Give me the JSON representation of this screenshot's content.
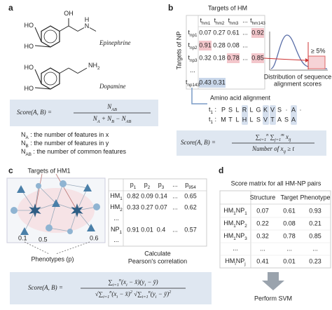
{
  "panel_a": {
    "label": "a",
    "molecules": [
      {
        "name": "Epinephrine",
        "atoms": [
          [
            "OH"
          ],
          [
            "HO"
          ],
          [
            "HO"
          ],
          [
            "N"
          ],
          [
            "H"
          ]
        ]
      },
      {
        "name": "Dopamine",
        "atoms": [
          [
            "HO"
          ],
          [
            "HO"
          ],
          [
            "NH",
            {
              "sub": "2"
            }
          ]
        ]
      }
    ],
    "formula": {
      "lhs": "Score(A, B) =",
      "num": [
        "N",
        {
          "sub": "AB"
        }
      ],
      "den": [
        "N",
        {
          "sub": "A"
        },
        " + N",
        {
          "sub": "B"
        },
        " − N",
        {
          "sub": "AB"
        }
      ]
    },
    "definitions": [
      [
        "N",
        {
          "sub": "A"
        },
        " : the number of features in x"
      ],
      [
        "N",
        {
          "sub": "B"
        },
        " : the number of features in y"
      ],
      [
        "N",
        {
          "sub": "AB"
        },
        " : the number of common features"
      ]
    ]
  },
  "panel_b": {
    "label": "b",
    "col_title": "Targets of HM",
    "row_title": "Targets of NP",
    "columns": [
      [
        "t",
        {
          "sub": "hm1"
        }
      ],
      [
        "t",
        {
          "sub": "hm2"
        }
      ],
      [
        "t",
        {
          "sub": "hm3"
        }
      ],
      [
        "..."
      ],
      [
        "t",
        {
          "sub": "hm143"
        }
      ]
    ],
    "rows": [
      {
        "header": [
          "t",
          {
            "sub": "np1"
          }
        ],
        "cells": [
          0.07,
          0.27,
          0.61,
          "...",
          0.92
        ]
      },
      {
        "header": [
          "t",
          {
            "sub": "np2"
          }
        ],
        "cells": [
          0.91,
          0.28,
          0.08,
          "...",
          null
        ]
      },
      {
        "header": [
          "t",
          {
            "sub": "np3"
          }
        ],
        "cells": [
          0.32,
          0.18,
          0.78,
          "...",
          0.85
        ]
      },
      {
        "header": [
          "..."
        ],
        "cells": [
          null,
          null,
          null,
          null,
          null
        ]
      },
      {
        "header": [
          "t",
          {
            "sub": "np143"
          }
        ],
        "cells": [
          0.43,
          0.31,
          null,
          null,
          null
        ]
      }
    ],
    "threshold": "≥ 5%",
    "distribution_caption": [
      "Distribution of sequence",
      "alignment scores"
    ],
    "alignment_title": "Amino acid alignment",
    "alignment": [
      {
        "label": [
          "t",
          {
            "sub": "1"
          },
          " :"
        ],
        "residues": [
          "P",
          "S",
          "L",
          "R",
          "L",
          "G",
          "K",
          "V",
          "S",
          "·",
          "A",
          "·"
        ]
      },
      {
        "label": [
          "t",
          {
            "sub": "1"
          },
          " :"
        ],
        "residues": [
          "M",
          "T",
          "L",
          "H",
          "L",
          "S",
          "V",
          "T",
          "A",
          "S",
          "A"
        ]
      }
    ],
    "highlight_columns": [
      3,
      6,
      7,
      10
    ],
    "formula": {
      "lhs": "Score(A, B) =",
      "num": [
        "∑",
        {
          "sub": "i=1"
        },
        {
          "sup": "n"
        },
        " ∑",
        {
          "sub": "j=1"
        },
        {
          "sup": "m"
        },
        " x",
        {
          "sub": "ij"
        }
      ],
      "den": [
        "Number of x",
        {
          "sub": "ij"
        },
        " ≥ t"
      ]
    }
  },
  "panel_c": {
    "label": "c",
    "title": "Targets of HM1",
    "network_labels": [
      0.1,
      0.5,
      0.6
    ],
    "caption": "Phenotypes (p)",
    "columns": [
      [
        "p",
        {
          "sub": "1"
        }
      ],
      [
        "p",
        {
          "sub": "2"
        }
      ],
      [
        "p",
        {
          "sub": "3"
        }
      ],
      [
        "..."
      ],
      [
        "p",
        {
          "sub": "954"
        }
      ]
    ],
    "rows": [
      {
        "header": [
          "HM",
          {
            "sub": "1"
          }
        ],
        "cells": [
          0.82,
          0.09,
          0.14,
          "...",
          0.65
        ]
      },
      {
        "header": [
          "HM",
          {
            "sub": "2"
          }
        ],
        "cells": [
          0.33,
          0.27,
          0.07,
          "...",
          0.62
        ]
      },
      {
        "header": [
          "..."
        ],
        "cells": []
      },
      {
        "header": [
          "NP",
          {
            "sub": "1"
          }
        ],
        "cells": [
          0.91,
          0.01,
          0.4,
          "...",
          0.57
        ]
      },
      {
        "header": [
          "..."
        ],
        "cells": []
      }
    ],
    "caption2": [
      "Calculate",
      "Pearson's correlation"
    ],
    "formula": {
      "lhs": "Score(A, B) =",
      "num": [
        "∑",
        {
          "sub": "i=1"
        },
        {
          "sup": "n"
        },
        "(x",
        {
          "sub": "i"
        },
        " − x̄)(y",
        {
          "sub": "i"
        },
        " − ȳ)"
      ],
      "den": [
        "√∑",
        {
          "sub": "i=1"
        },
        {
          "sup": "n"
        },
        "(x",
        {
          "sub": "i"
        },
        " − x̄)",
        {
          "sup": "2"
        },
        " √∑",
        {
          "sub": "i=1"
        },
        {
          "sup": "n"
        },
        "(y",
        {
          "sub": "i"
        },
        " − ȳ)",
        {
          "sup": "2"
        }
      ]
    }
  },
  "panel_d": {
    "label": "d",
    "title": "Score matrix for all HM-NP pairs",
    "columns": [
      "Structure",
      "Target",
      "Phenotype"
    ],
    "rows": [
      {
        "header": [
          "HM",
          {
            "sub": "1"
          },
          "NP",
          {
            "sub": "1"
          }
        ],
        "cells": [
          0.07,
          0.61,
          0.93
        ]
      },
      {
        "header": [
          "HM",
          {
            "sub": "1"
          },
          "NP",
          {
            "sub": "2"
          }
        ],
        "cells": [
          0.22,
          0.08,
          0.21
        ]
      },
      {
        "header": [
          "HM",
          {
            "sub": "1"
          },
          "NP",
          {
            "sub": "3"
          }
        ],
        "cells": [
          0.32,
          0.78,
          0.85
        ]
      },
      {
        "header": [
          "..."
        ],
        "cells": [
          "...",
          "...",
          "..."
        ]
      },
      {
        "header": [
          "HM",
          {
            "sub": "i"
          },
          "NP",
          {
            "sub": "j"
          }
        ],
        "cells": [
          0.41,
          0.01,
          0.23
        ]
      }
    ],
    "action": "Perform SVM"
  }
}
